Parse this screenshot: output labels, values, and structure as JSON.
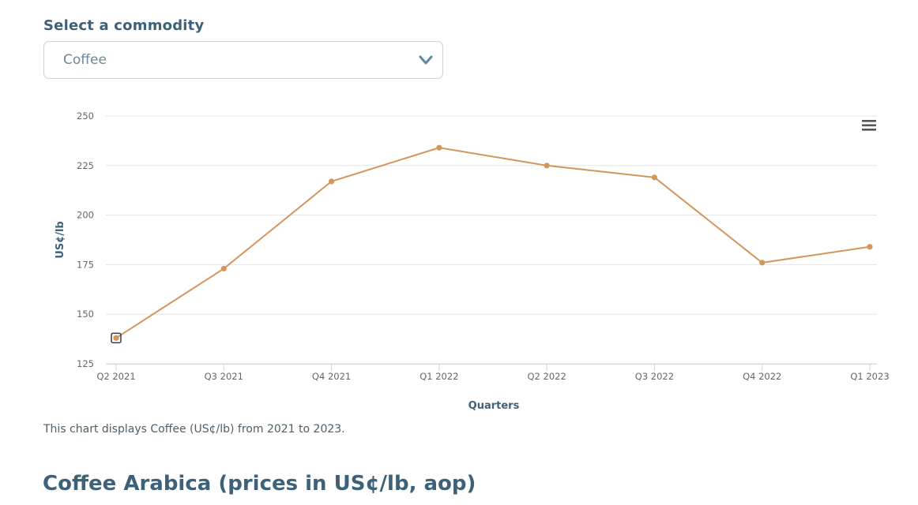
{
  "selector": {
    "label": "Select a commodity",
    "selected": "Coffee"
  },
  "chart_data": {
    "type": "line",
    "categories": [
      "Q2 2021",
      "Q3 2021",
      "Q4 2021",
      "Q1 2022",
      "Q2 2022",
      "Q3 2022",
      "Q4 2022",
      "Q1 2023"
    ],
    "series": [
      {
        "values": [
          138,
          173,
          217,
          234,
          225,
          219,
          176,
          184
        ],
        "color": "#d4955a"
      }
    ],
    "xlabel": "Quarters",
    "ylabel": "US¢/lb",
    "ylim": [
      125,
      250
    ],
    "yticks": [
      "125",
      "150",
      "175",
      "200",
      "225",
      "250"
    ],
    "grid": true,
    "highlighted_point": "Q2 2021"
  },
  "caption": "This chart displays Coffee (US¢/lb) from 2021 to 2023.",
  "section_title": "Coffee Arabica (prices in US¢/lb, aop)",
  "icons": {
    "dropdown": "chevron-down-icon",
    "menu": "hamburger-menu-icon"
  },
  "colors": {
    "accent": "#3d6178",
    "line": "#d4955a",
    "marker_highlight": "#2e3f52"
  }
}
